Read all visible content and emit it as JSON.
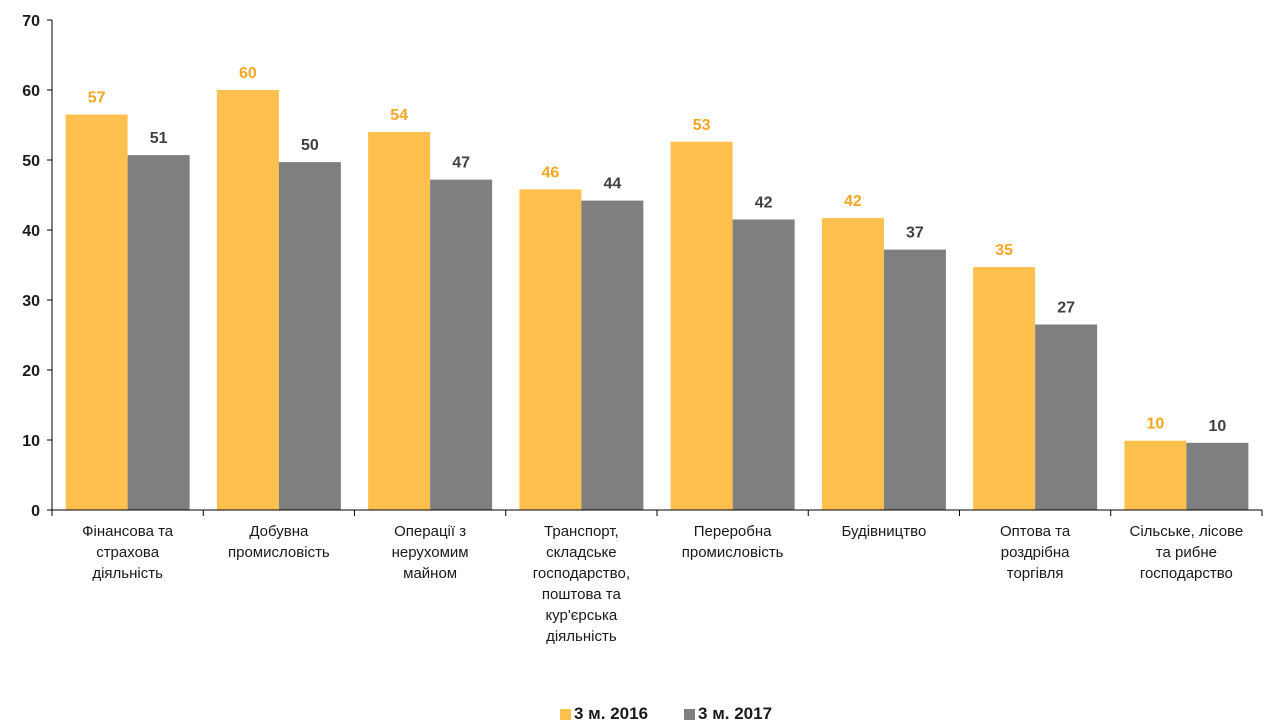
{
  "chart_data": {
    "type": "bar",
    "categories": [
      [
        "Фінансова та",
        "страхова",
        "діяльність"
      ],
      [
        "Добувна",
        "промисловість"
      ],
      [
        "Операції з",
        "нерухомим",
        "майном"
      ],
      [
        "Транспорт,",
        "складське",
        "господарство,",
        "поштова та",
        "кур'єрська",
        "діяльність"
      ],
      [
        "Переробна",
        "промисловість"
      ],
      [
        "Будівництво"
      ],
      [
        "Оптова та",
        "роздрібна",
        "торгівля"
      ],
      [
        "Сільське, лісове",
        "та рибне",
        "господарство"
      ]
    ],
    "series": [
      {
        "name": "3 м. 2016",
        "color": "#FFC04D",
        "label_color": "#F5A623",
        "values": [
          56.5,
          60,
          54,
          45.8,
          52.6,
          41.7,
          34.7,
          9.9
        ],
        "labels": [
          "57",
          "60",
          "54",
          "46",
          "53",
          "42",
          "35",
          "10"
        ]
      },
      {
        "name": "3 м. 2017",
        "color": "#7F7F7F",
        "label_color": "#404040",
        "values": [
          50.7,
          49.7,
          47.2,
          44.2,
          41.5,
          37.2,
          26.5,
          9.6
        ],
        "labels": [
          "51",
          "50",
          "47",
          "44",
          "42",
          "37",
          "27",
          "10"
        ]
      }
    ],
    "ylim": [
      0,
      70
    ],
    "yticks": [
      0,
      10,
      20,
      30,
      40,
      50,
      60,
      70
    ],
    "grid": false,
    "legend_position": "bottom-center"
  }
}
